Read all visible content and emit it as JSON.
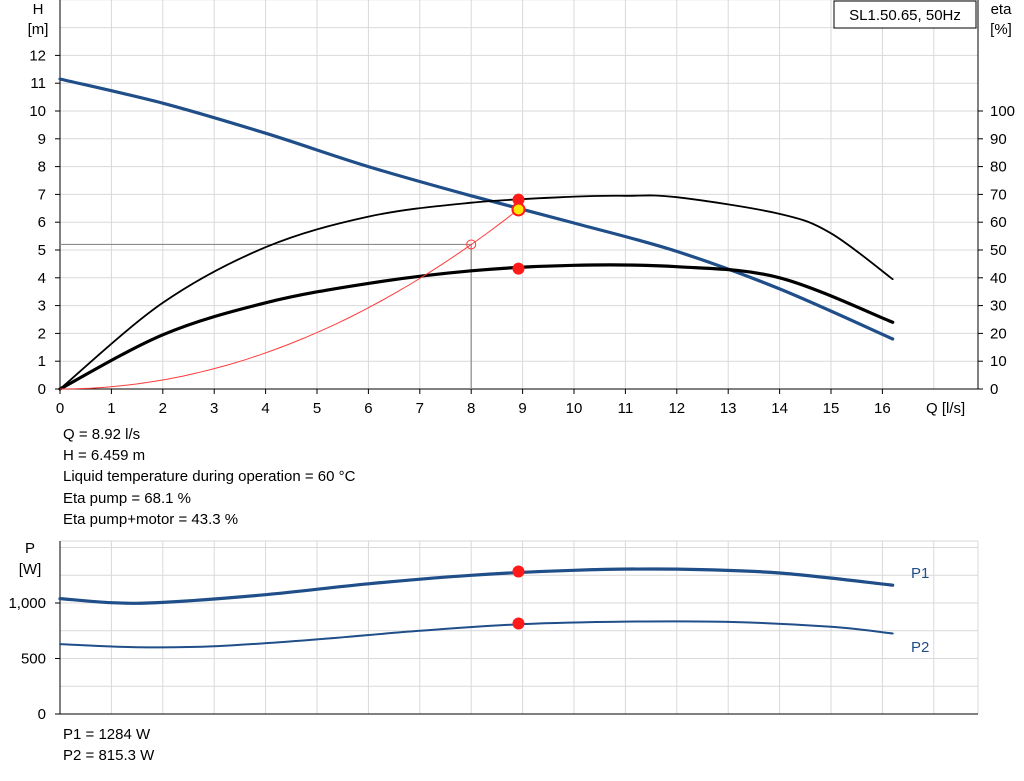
{
  "chart_data": [
    {
      "type": "line",
      "title": "SL1.50.65, 50Hz",
      "xlabel": "Q [l/s]",
      "ylabel_left": [
        "H",
        "[m]"
      ],
      "ylabel_right": [
        "eta",
        "[%]"
      ],
      "xlim": [
        0,
        17
      ],
      "ylim_left": [
        0,
        12
      ],
      "ylim_right": [
        0,
        120
      ],
      "x_ticks": [
        "0",
        "1",
        "2",
        "3",
        "4",
        "5",
        "6",
        "7",
        "8",
        "9",
        "10",
        "11",
        "12",
        "13",
        "14",
        "15",
        "16"
      ],
      "y_ticks_left": [
        "0",
        "1",
        "2",
        "3",
        "4",
        "5",
        "6",
        "7",
        "8",
        "9",
        "10",
        "11",
        "12"
      ],
      "y_ticks_right": [
        "0",
        "10",
        "20",
        "30",
        "40",
        "50",
        "60",
        "70",
        "80",
        "90",
        "100"
      ],
      "grid": true,
      "series": [
        {
          "name": "",
          "axis": "left",
          "color": "#1f4e89",
          "width": 3.2,
          "x": [
            0,
            2,
            4,
            6,
            8,
            10,
            12,
            14,
            16.2
          ],
          "y": [
            11.15,
            10.28,
            9.2,
            8.0,
            6.95,
            5.97,
            4.95,
            3.6,
            1.8
          ]
        },
        {
          "name": "",
          "axis": "right",
          "color": "#000000",
          "width": 1.8,
          "x": [
            0,
            2,
            4,
            6,
            8,
            10,
            11,
            12,
            14,
            15,
            16.2
          ],
          "y": [
            0,
            31,
            51,
            62,
            67,
            69.2,
            69.5,
            69,
            63,
            56,
            39.5
          ]
        },
        {
          "name": "",
          "axis": "right",
          "color": "#000000",
          "width": 3.2,
          "x": [
            0,
            2,
            4,
            6,
            8,
            10,
            12,
            14,
            16.2
          ],
          "y": [
            0,
            19.5,
            31,
            38,
            42.5,
            44.5,
            44,
            40,
            24
          ]
        },
        {
          "name": "",
          "axis": "left",
          "color": "#ff3b3b",
          "width": 1,
          "x": [
            0,
            8.92
          ],
          "curve": "parabola",
          "y": [
            0,
            6.459
          ]
        }
      ],
      "operating_point": {
        "x": 8.92,
        "H": 6.459,
        "eta_pump": 68.1,
        "eta_pump_motor": 43.3
      },
      "reference_point": {
        "x": 8.0,
        "y": 5.2
      }
    },
    {
      "type": "line",
      "ylabel": [
        "P",
        "[W]"
      ],
      "ylim": [
        0,
        1300
      ],
      "y_ticks": [
        "0",
        "500",
        "1,000"
      ],
      "y_tick_values": [
        0,
        500,
        1000
      ],
      "xlim": [
        0,
        17
      ],
      "grid": true,
      "series": [
        {
          "name": "P1",
          "color": "#1f4e89",
          "width": 3.2,
          "x": [
            0,
            1,
            2,
            4,
            6,
            8,
            10,
            12,
            14,
            16.2
          ],
          "y": [
            1040,
            1003,
            1005,
            1075,
            1173,
            1250,
            1295,
            1305,
            1270,
            1160
          ]
        },
        {
          "name": "P2",
          "color": "#1f4e89",
          "width": 2,
          "x": [
            0,
            1.5,
            3,
            5,
            7,
            9,
            11,
            13,
            15,
            16.2
          ],
          "y": [
            630,
            602,
            610,
            672,
            750,
            810,
            832,
            830,
            786,
            725
          ]
        }
      ],
      "points": [
        {
          "x": 8.92,
          "y": 1284
        },
        {
          "x": 8.92,
          "y": 815.3
        }
      ]
    }
  ],
  "info_upper": [
    "Q = 8.92 l/s",
    "H = 6.459 m",
    "Liquid temperature during operation = 60 °C",
    "Eta pump = 68.1 %",
    "Eta pump+motor = 43.3 %"
  ],
  "info_lower": [
    "P1 = 1284 W",
    "P2 = 815.3 W"
  ]
}
